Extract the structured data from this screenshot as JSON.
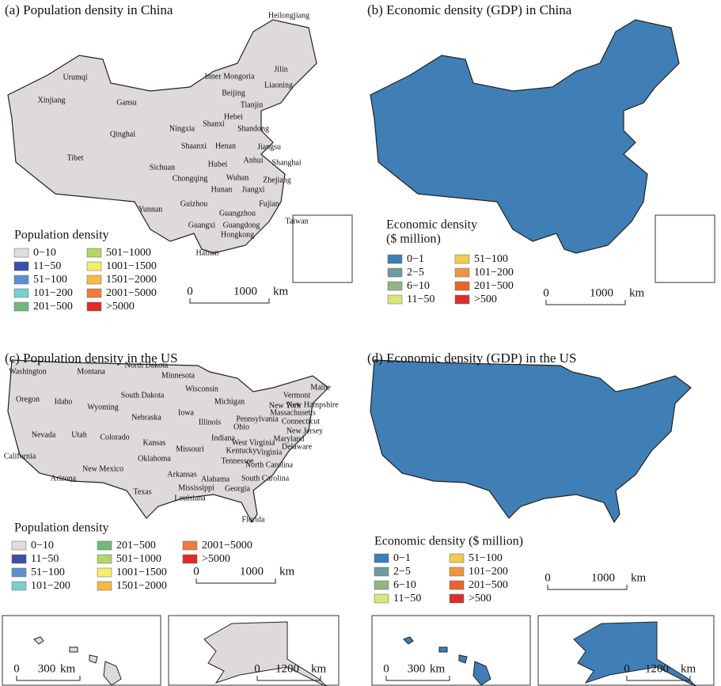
{
  "panels": [
    {
      "title": "(a) Population density in China",
      "map": "china",
      "fill": "#dddad9",
      "places": [
        "Heilongjiang",
        "Urumqi",
        "Jilin",
        "Inner Mongoria",
        "Liaoning",
        "Xinjiang",
        "Gansu",
        "Beijing",
        "Tianjin",
        "Hebei",
        "Shandong",
        "Qinghai",
        "Ningxia",
        "Shanxi",
        "Shaanxi",
        "Henan",
        "Jiangsu",
        "Tibet",
        "Anhui",
        "Shanghai",
        "Sichuan",
        "Hubei",
        "Wuhan",
        "Chongqing",
        "Zhejiang",
        "Hunan",
        "Jiangxi",
        "Guizhou",
        "Fujian",
        "Yunnan",
        "Guangzhou",
        "Taiwan",
        "Guangxi",
        "Guangdong",
        "Hongkong",
        "Hainan"
      ],
      "legend_title": [
        "Population density"
      ],
      "legend": [
        {
          "label": "0−10",
          "color": "#e0dcdc"
        },
        {
          "label": "11−50",
          "color": "#3b4fa8"
        },
        {
          "label": "51−100",
          "color": "#5f8ecf"
        },
        {
          "label": "101−200",
          "color": "#7ccdd0"
        },
        {
          "label": "201−500",
          "color": "#74b97c"
        },
        {
          "label": "501−1000",
          "color": "#b5d56a"
        },
        {
          "label": "1001−1500",
          "color": "#f3ef6a"
        },
        {
          "label": "1501−2000",
          "color": "#f7b845"
        },
        {
          "label": "2001−5000",
          "color": "#f07b3a"
        },
        {
          "label": ">5000",
          "color": "#e02a2a"
        }
      ],
      "scale": [
        "0",
        "1000"
      ],
      "unit": "km"
    },
    {
      "title": "(b) Economic density (GDP) in China",
      "map": "china",
      "fill": "#3f7fb5",
      "places": [],
      "legend_title": [
        "Economic density",
        "($ million)"
      ],
      "legend": [
        {
          "label": "0−1",
          "color": "#3d7fb6"
        },
        {
          "label": "2−5",
          "color": "#6a9ca0"
        },
        {
          "label": "6−10",
          "color": "#93b583"
        },
        {
          "label": "11−50",
          "color": "#d7e57a"
        },
        {
          "label": "51−100",
          "color": "#f0cb4e"
        },
        {
          "label": "101−200",
          "color": "#ef9540"
        },
        {
          "label": "201−500",
          "color": "#e8642c"
        },
        {
          "label": ">500",
          "color": "#d8302a"
        }
      ],
      "scale": [
        "0",
        "1000"
      ],
      "unit": "km"
    },
    {
      "title": "(c) Population density in the US",
      "map": "us",
      "fill": "#dddad9",
      "places": [
        "Washington",
        "Montana",
        "North Dakota",
        "Minnesota",
        "Wisconsin",
        "Maine",
        "Vermont",
        "New Hampshire",
        "Oregon",
        "Idaho",
        "South Dakota",
        "Wyoming",
        "Michigan",
        "New York",
        "Massachusetts",
        "Connecticut",
        "Nebraska",
        "Iowa",
        "Illinois",
        "Pennsylvania",
        "Ohio",
        "New Jersey",
        "Nevada",
        "Utah",
        "Colorado",
        "Kansas",
        "Indiana",
        "Maryland",
        "Delaware",
        "West Virginia",
        "Virginia",
        "Missouri",
        "Kentucky",
        "California",
        "Oklahoma",
        "Tennessee",
        "North Carolina",
        "New Mexico",
        "Arkansas",
        "Arizona",
        "South Carolina",
        "Alabama",
        "Mississippi",
        "Georgia",
        "Texas",
        "Louisiana",
        "Florida"
      ],
      "legend_title": [
        "Population density"
      ],
      "legend": [
        {
          "label": "0−10",
          "color": "#e0dcdc"
        },
        {
          "label": "11−50",
          "color": "#3b4fa8"
        },
        {
          "label": "51−100",
          "color": "#5f8ecf"
        },
        {
          "label": "101−200",
          "color": "#7ccdd0"
        },
        {
          "label": "201−500",
          "color": "#74b97c"
        },
        {
          "label": "501−1000",
          "color": "#b5d56a"
        },
        {
          "label": "1001−1500",
          "color": "#f3ef6a"
        },
        {
          "label": "1501−2000",
          "color": "#f7b845"
        },
        {
          "label": "2001−5000",
          "color": "#f07b3a"
        },
        {
          "label": ">5000",
          "color": "#e02a2a"
        }
      ],
      "scale": [
        "0",
        "1000"
      ],
      "unit": "km"
    },
    {
      "title": "(d) Economic density (GDP) in the US",
      "map": "us",
      "fill": "#3f7fb5",
      "places": [],
      "legend_title": [
        "Economic density ($ million)"
      ],
      "legend": [
        {
          "label": "0−1",
          "color": "#3d7fb6"
        },
        {
          "label": "2−5",
          "color": "#6a9ca0"
        },
        {
          "label": "6−10",
          "color": "#93b583"
        },
        {
          "label": "11−50",
          "color": "#d7e57a"
        },
        {
          "label": "51−100",
          "color": "#f0cb4e"
        },
        {
          "label": "101−200",
          "color": "#ef9540"
        },
        {
          "label": "201−500",
          "color": "#e8642c"
        },
        {
          "label": ">500",
          "color": "#d8302a"
        }
      ],
      "scale": [
        "0",
        "1000"
      ],
      "unit": "km"
    }
  ],
  "insets": [
    {
      "map": "hawaii",
      "fill": "#dddad9",
      "scale": [
        "0",
        "300"
      ],
      "unit": "km"
    },
    {
      "map": "alaska",
      "fill": "#dddad9",
      "scale": [
        "0",
        "1200"
      ],
      "unit": "km"
    },
    {
      "map": "hawaii",
      "fill": "#3f7fb5",
      "scale": [
        "0",
        "300"
      ],
      "unit": "km"
    },
    {
      "map": "alaska",
      "fill": "#3f7fb5",
      "scale": [
        "0",
        "1200"
      ],
      "unit": "km"
    }
  ]
}
